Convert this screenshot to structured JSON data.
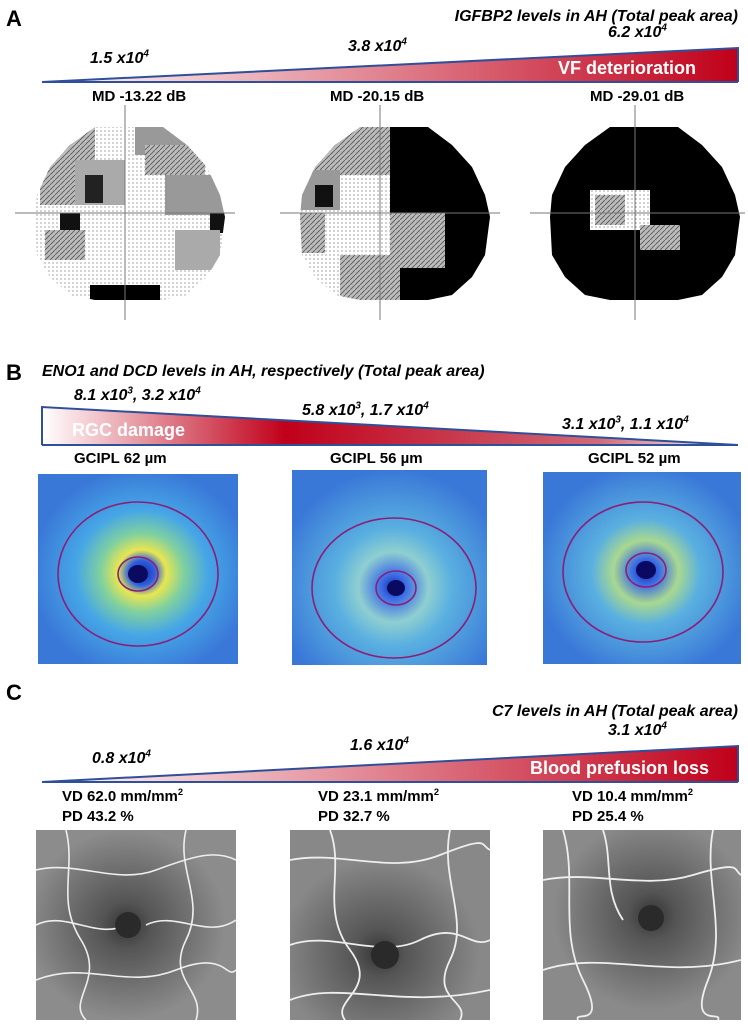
{
  "panels": [
    {
      "letter": "A",
      "heading": "IGFBP2 levels in AH (Total peak area)",
      "values": [
        {
          "base": "1.5 x10",
          "exp": "4"
        },
        {
          "base": "3.8 x10",
          "exp": "4"
        },
        {
          "base": "6.2 x10",
          "exp": "4"
        }
      ],
      "wedge_label": "VF deterioration",
      "captions": [
        "MD -13.22 dB",
        "MD -20.15 dB",
        "MD -29.01 dB"
      ]
    },
    {
      "letter": "B",
      "heading": "ENO1 and DCD levels in AH, respectively (Total peak area)",
      "values": [
        {
          "a_base": "8.1 x10",
          "a_exp": "3",
          "b_base": ", 3.2 x10",
          "b_exp": "4"
        },
        {
          "a_base": "5.8 x10",
          "a_exp": "3",
          "b_base": ", 1.7 x10",
          "b_exp": "4"
        },
        {
          "a_base": "3.1 x10",
          "a_exp": "3",
          "b_base": ", 1.1 x10",
          "b_exp": "4"
        }
      ],
      "wedge_label": "RGC damage",
      "captions": [
        "GCIPL 62 µm",
        "GCIPL 56 µm",
        "GCIPL 52 µm"
      ]
    },
    {
      "letter": "C",
      "heading": "C7 levels in AH (Total peak area)",
      "values": [
        {
          "base": "0.8 x10",
          "exp": "4"
        },
        {
          "base": "1.6 x10",
          "exp": "4"
        },
        {
          "base": "3.1 x10",
          "exp": "4"
        }
      ],
      "wedge_label": "Blood prefusion loss",
      "captions": [
        {
          "vd": "VD 62.0 mm/mm",
          "vd_exp": "2",
          "pd": "PD 43.2 %"
        },
        {
          "vd": "VD 23.1 mm/mm",
          "vd_exp": "2",
          "pd": "PD 32.7 %"
        },
        {
          "vd": "VD 10.4 mm/mm",
          "vd_exp": "2",
          "pd": "PD 25.4 %"
        }
      ]
    }
  ]
}
